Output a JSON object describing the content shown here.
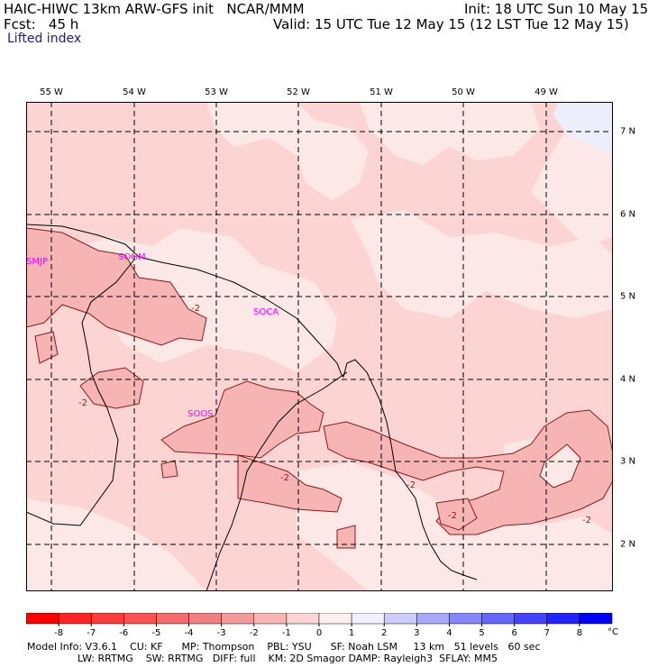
{
  "header": {
    "model_title": "HAIC-HIWC 13km ARW-GFS init   NCAR/MMM",
    "init_time": "Init: 18 UTC Sun 10 May 15",
    "fcst": "Fcst:   45 h",
    "valid_time": "Valid: 15 UTC Tue 12 May 15 (12 LST Tue 12 May 15)",
    "field": "Lifted index"
  },
  "longitudes": [
    "55 W",
    "54 W",
    "53 W",
    "52 W",
    "51 W",
    "50 W",
    "49 W"
  ],
  "latitudes": [
    "7 N",
    "6 N",
    "5 N",
    "4 N",
    "3 N",
    "2 N"
  ],
  "stations": [
    "SMJP",
    "SOGM",
    "SOCA",
    "SOOS"
  ],
  "contour_labels": [
    "-2",
    "-2",
    "-2",
    "-2",
    "-2",
    "-2"
  ],
  "legend": {
    "ticks": [
      "-8",
      "-7",
      "-6",
      "-5",
      "-4",
      "-3",
      "-2",
      "-1",
      "0",
      "1",
      "2",
      "3",
      "4",
      "5",
      "6",
      "7",
      "8"
    ],
    "unit": "°C",
    "colors": [
      "#ff0000",
      "#ff2424",
      "#ff3b3b",
      "#ff5151",
      "#f56a6a",
      "#f28080",
      "#f59a9a",
      "#fbb5b5",
      "#fdd4d4",
      "#fff0f0",
      "#f0f0ff",
      "#ccccff",
      "#a8a8ff",
      "#8686ff",
      "#6565ff",
      "#4343ff",
      "#2222ff",
      "#0000ff"
    ]
  },
  "footer": {
    "line1": "Model Info: V3.6.1    CU: KF      MP: Thompson    PBL: YSU      SF: Noah LSM     13 km   51 levels   60 sec",
    "line2": "                LW: RRTMG    SW: RRTMG   DIFF: full    KM: 2D Smagor DAMP: Rayleigh3  SFLAY: MM5"
  },
  "colors": {
    "background_li": "#fdd4d4",
    "light_li": "#fde8e8",
    "mid_li": "#f9bcbc",
    "stable_blue": "#eceefc",
    "station_label": "#ff00ff",
    "contour": "#8b1a1a"
  }
}
